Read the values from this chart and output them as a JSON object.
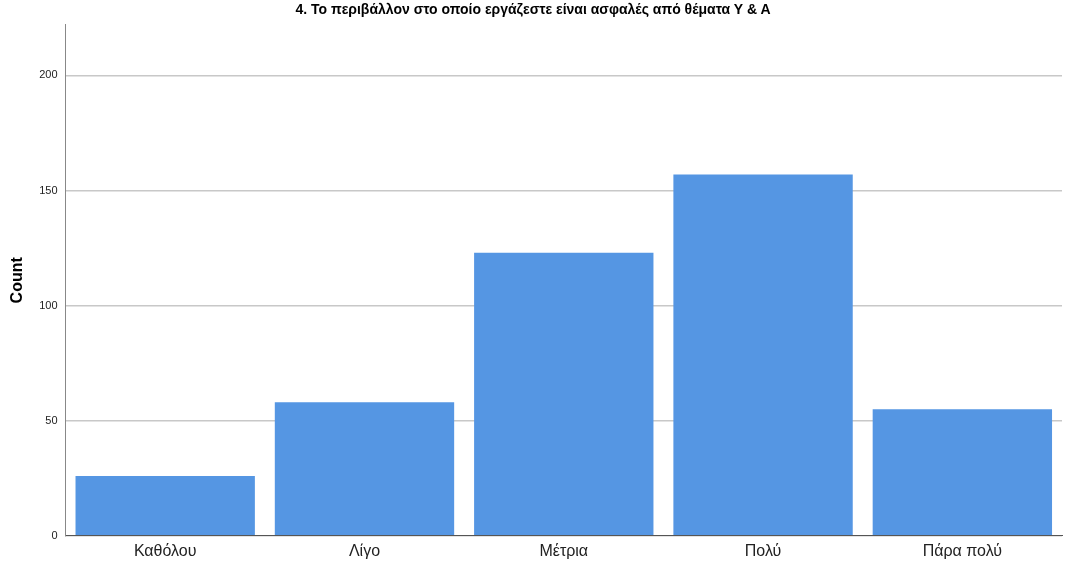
{
  "chart_data": {
    "type": "bar",
    "title": "4. Το περιβάλλον στο οποίο εργάζεστε είναι ασφαλές από θέματα Υ & Α",
    "ylabel": "Count",
    "categories": [
      "Καθόλου",
      "Λίγο",
      "Μέτρια",
      "Πολύ",
      "Πάρα πολύ"
    ],
    "values": [
      26,
      58,
      123,
      157,
      55
    ],
    "color": "#5596e3",
    "ylim": [
      0,
      222
    ],
    "yticks": [
      0,
      50,
      100,
      150,
      200
    ],
    "grid": "y"
  }
}
